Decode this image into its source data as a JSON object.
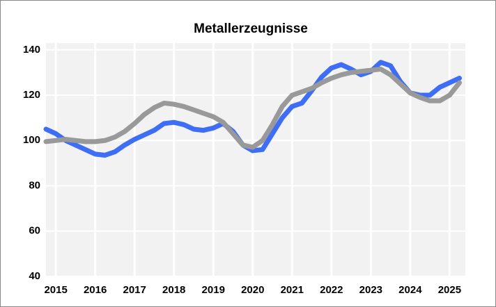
{
  "chart_data": {
    "type": "line",
    "title": "Metallerzeugnisse",
    "x": [
      2014.75,
      2015,
      2015.25,
      2015.5,
      2015.75,
      2016,
      2016.25,
      2016.5,
      2016.75,
      2017,
      2017.25,
      2017.5,
      2017.75,
      2018,
      2018.25,
      2018.5,
      2018.75,
      2019,
      2019.25,
      2019.5,
      2019.75,
      2020,
      2020.25,
      2020.5,
      2020.75,
      2021,
      2021.25,
      2021.5,
      2021.75,
      2022,
      2022.25,
      2022.5,
      2022.75,
      2023,
      2023.25,
      2023.5,
      2023.75,
      2024,
      2024.25,
      2024.5,
      2024.75,
      2025,
      2025.25
    ],
    "series": [
      {
        "color": "#3d6ef5",
        "values": [
          105,
          103,
          100,
          98,
          96,
          94,
          93.5,
          95,
          98,
          100.5,
          102.5,
          104.5,
          107.5,
          108,
          107,
          105,
          104.5,
          105.5,
          107.5,
          104,
          98,
          95.5,
          96,
          103,
          110,
          115,
          116.5,
          122,
          128,
          132,
          133.5,
          131.5,
          129,
          130.5,
          134.5,
          133,
          126,
          121,
          120,
          120,
          123.5,
          125.5,
          127.5
        ]
      },
      {
        "color": "#999999",
        "values": [
          99.5,
          100,
          100.5,
          100,
          99.5,
          99.5,
          100,
          101.5,
          104,
          107.5,
          111.5,
          114.5,
          116.5,
          116,
          115,
          113.5,
          112,
          110.5,
          108,
          103,
          98,
          97,
          100,
          107,
          115,
          120,
          121.5,
          123,
          125.5,
          127.5,
          129,
          130,
          130.5,
          131,
          131.5,
          129,
          125,
          121,
          119,
          117.5,
          117.5,
          120,
          125.5
        ]
      }
    ],
    "xlim": [
      2014.75,
      2025.4
    ],
    "xticks": [
      2015,
      2016,
      2017,
      2018,
      2019,
      2020,
      2021,
      2022,
      2023,
      2024,
      2025
    ],
    "ylim": [
      40,
      143
    ],
    "yticks": [
      40,
      60,
      80,
      100,
      120,
      140
    ],
    "grid": true
  }
}
